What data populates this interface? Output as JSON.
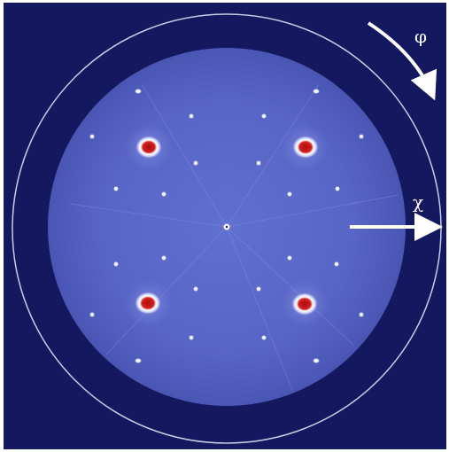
{
  "figure": {
    "phi_label": "φ",
    "chi_label": "χ",
    "colors": {
      "background": "#14185e",
      "detector": "#5a68c8",
      "detector_edge": "#4a58b8",
      "guide_circle": "#c8cbe6",
      "arrow": "#ffffff",
      "peak_strong": "#c01818",
      "peak_weak": "#f2f3ff"
    }
  }
}
